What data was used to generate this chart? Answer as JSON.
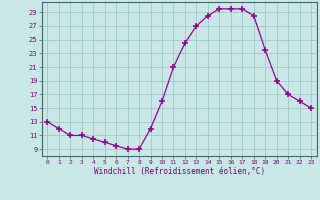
{
  "x": [
    0,
    1,
    2,
    3,
    4,
    5,
    6,
    7,
    8,
    9,
    10,
    11,
    12,
    13,
    14,
    15,
    16,
    17,
    18,
    19,
    20,
    21,
    22,
    23
  ],
  "y": [
    13,
    12,
    11,
    11,
    10.5,
    10,
    9.5,
    9,
    9,
    12,
    16,
    21,
    24.5,
    27,
    28.5,
    29.5,
    29.5,
    29.5,
    28.5,
    23.5,
    19,
    17,
    16,
    15
  ],
  "line_color": "#990099",
  "marker": "+",
  "marker_size": 4,
  "bg_color": "#c8e8e8",
  "grid_color": "#a0c8c8",
  "xlabel": "Windchill (Refroidissement éolien,°C)",
  "ylabel_ticks": [
    9,
    11,
    13,
    15,
    17,
    19,
    21,
    23,
    25,
    27,
    29
  ],
  "ylim": [
    8.0,
    30.5
  ],
  "xlim": [
    -0.5,
    23.5
  ],
  "xtick_labels": [
    "0",
    "1",
    "2",
    "3",
    "4",
    "5",
    "6",
    "7",
    "8",
    "9",
    "10",
    "11",
    "12",
    "13",
    "14",
    "15",
    "16",
    "17",
    "18",
    "19",
    "20",
    "21",
    "22",
    "23"
  ]
}
